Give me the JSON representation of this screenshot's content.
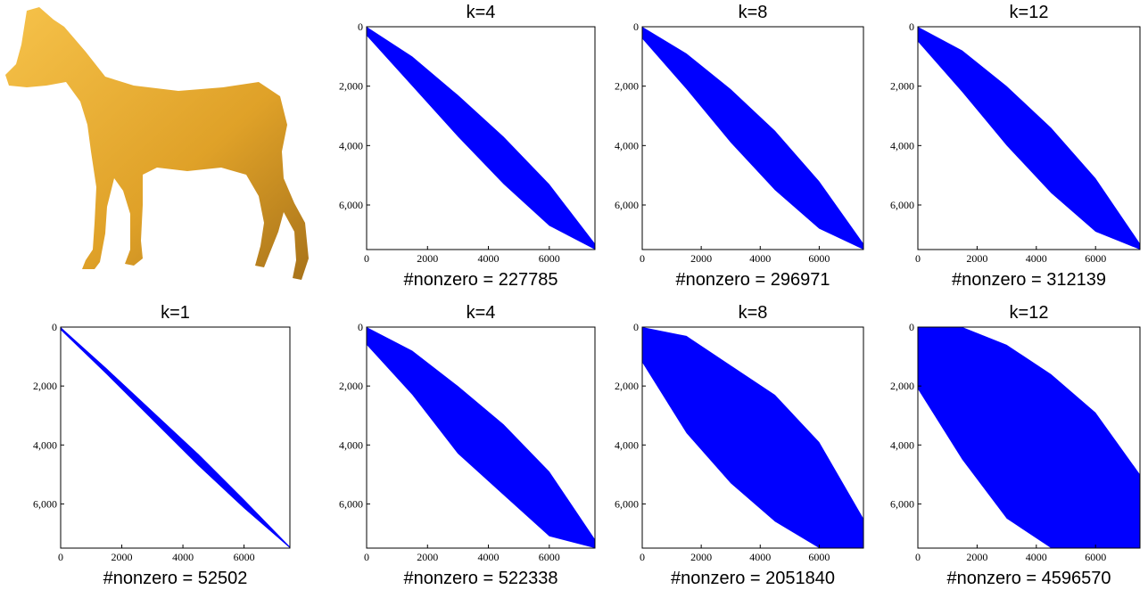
{
  "chart_data": [
    {
      "type": "spy",
      "title": "k=4",
      "xlabel": "#nonzero = 227785",
      "color": "#0000ff",
      "xlim": [
        0,
        7500
      ],
      "ylim": [
        7500,
        0
      ],
      "xticks": [
        0,
        2000,
        4000,
        6000
      ],
      "yticks": [
        0,
        {
          "value": 2000,
          "label": "2,000"
        },
        {
          "value": 4000,
          "label": "4,000"
        },
        {
          "value": 6000,
          "label": "6,000"
        }
      ],
      "x": [
        0,
        1500,
        3000,
        4500,
        6000,
        7500
      ],
      "lower": [
        0,
        1000,
        2300,
        3700,
        5300,
        7300
      ],
      "upper": [
        300,
        2000,
        3700,
        5300,
        6700,
        7500
      ]
    },
    {
      "type": "spy",
      "title": "k=8",
      "xlabel": "#nonzero = 296971",
      "color": "#0000ff",
      "xlim": [
        0,
        7500
      ],
      "ylim": [
        7500,
        0
      ],
      "xticks": [
        0,
        2000,
        4000,
        6000
      ],
      "yticks": [
        0,
        {
          "value": 2000,
          "label": "2,000"
        },
        {
          "value": 4000,
          "label": "4,000"
        },
        {
          "value": 6000,
          "label": "6,000"
        }
      ],
      "x": [
        0,
        1500,
        3000,
        4500,
        6000,
        7500
      ],
      "lower": [
        0,
        900,
        2100,
        3500,
        5200,
        7300
      ],
      "upper": [
        400,
        2100,
        3900,
        5500,
        6800,
        7500
      ]
    },
    {
      "type": "spy",
      "title": "k=12",
      "xlabel": "#nonzero = 312139",
      "color": "#0000ff",
      "xlim": [
        0,
        7500
      ],
      "ylim": [
        7500,
        0
      ],
      "xticks": [
        0,
        2000,
        4000,
        6000
      ],
      "yticks": [
        0,
        {
          "value": 2000,
          "label": "2,000"
        },
        {
          "value": 4000,
          "label": "4,000"
        },
        {
          "value": 6000,
          "label": "6,000"
        }
      ],
      "x": [
        0,
        1500,
        3000,
        4500,
        6000,
        7500
      ],
      "lower": [
        0,
        800,
        2000,
        3400,
        5100,
        7300
      ],
      "upper": [
        500,
        2200,
        4000,
        5600,
        6900,
        7500
      ]
    },
    {
      "type": "spy",
      "title": "k=1",
      "xlabel": "#nonzero = 52502",
      "color": "#0000ff",
      "xlim": [
        0,
        7500
      ],
      "ylim": [
        7500,
        0
      ],
      "xticks": [
        0,
        2000,
        4000,
        6000
      ],
      "yticks": [
        0,
        {
          "value": 2000,
          "label": "2,000"
        },
        {
          "value": 4000,
          "label": "4,000"
        },
        {
          "value": 6000,
          "label": "6,000"
        }
      ],
      "x": [
        0,
        1500,
        3000,
        4500,
        6000,
        7500
      ],
      "lower": [
        0,
        1400,
        2850,
        4300,
        5850,
        7450
      ],
      "upper": [
        100,
        1600,
        3150,
        4700,
        6150,
        7500
      ]
    },
    {
      "type": "spy",
      "title": "k=4",
      "xlabel": "#nonzero = 522338",
      "color": "#0000ff",
      "xlim": [
        0,
        7500
      ],
      "ylim": [
        7500,
        0
      ],
      "xticks": [
        0,
        2000,
        4000,
        6000
      ],
      "yticks": [
        0,
        {
          "value": 2000,
          "label": "2,000"
        },
        {
          "value": 4000,
          "label": "4,000"
        },
        {
          "value": 6000,
          "label": "6,000"
        }
      ],
      "x": [
        0,
        1500,
        3000,
        4500,
        6000,
        7500
      ],
      "lower": [
        0,
        800,
        2000,
        3300,
        4900,
        7200
      ],
      "upper": [
        600,
        2300,
        4300,
        5700,
        7100,
        7500
      ]
    },
    {
      "type": "spy",
      "title": "k=8",
      "xlabel": "#nonzero = 2051840",
      "color": "#0000ff",
      "xlim": [
        0,
        7500
      ],
      "ylim": [
        7500,
        0
      ],
      "xticks": [
        0,
        2000,
        4000,
        6000
      ],
      "yticks": [
        0,
        {
          "value": 2000,
          "label": "2,000"
        },
        {
          "value": 4000,
          "label": "4,000"
        },
        {
          "value": 6000,
          "label": "6,000"
        }
      ],
      "x": [
        0,
        1500,
        3000,
        4500,
        6000,
        7500
      ],
      "lower": [
        0,
        300,
        1300,
        2300,
        3900,
        6500
      ],
      "upper": [
        1200,
        3600,
        5300,
        6600,
        7500,
        7500
      ]
    },
    {
      "type": "spy",
      "title": "k=12",
      "xlabel": "#nonzero = 4596570",
      "color": "#0000ff",
      "xlim": [
        0,
        7500
      ],
      "ylim": [
        7500,
        0
      ],
      "xticks": [
        0,
        2000,
        4000,
        6000
      ],
      "yticks": [
        0,
        {
          "value": 2000,
          "label": "2,000"
        },
        {
          "value": 4000,
          "label": "4,000"
        },
        {
          "value": 6000,
          "label": "6,000"
        }
      ],
      "x": [
        0,
        1500,
        3000,
        4500,
        6000,
        7500
      ],
      "lower": [
        0,
        0,
        600,
        1600,
        2900,
        5000
      ],
      "upper": [
        2100,
        4500,
        6500,
        7500,
        7500,
        7500
      ]
    }
  ]
}
